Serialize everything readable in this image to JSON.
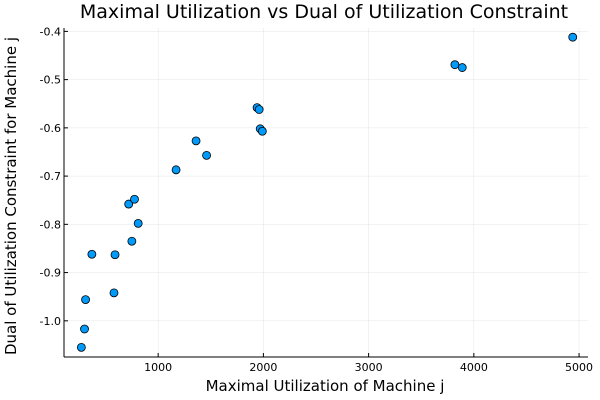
{
  "chart_data": {
    "type": "scatter",
    "title": "Maximal Utilization vs Dual of Utilization Constraint",
    "xlabel": "Maximal Utilization of Machine j",
    "ylabel": "Dual of Utilization Constraint for Machine j",
    "xlim": [
      105,
      5085
    ],
    "ylim": [
      -1.075,
      -0.393
    ],
    "xticks": [
      {
        "value": 1000,
        "label": "1000"
      },
      {
        "value": 2000,
        "label": "2000"
      },
      {
        "value": 3000,
        "label": "3000"
      },
      {
        "value": 4000,
        "label": "4000"
      },
      {
        "value": 5000,
        "label": "5000"
      }
    ],
    "yticks": [
      {
        "value": -1.0,
        "label": "-1.0"
      },
      {
        "value": -0.9,
        "label": "-0.9"
      },
      {
        "value": -0.8,
        "label": "-0.8"
      },
      {
        "value": -0.7,
        "label": "-0.7"
      },
      {
        "value": -0.6,
        "label": "-0.6"
      },
      {
        "value": -0.5,
        "label": "-0.5"
      },
      {
        "value": -0.4,
        "label": "-0.4"
      }
    ],
    "grid": true,
    "legend": "none",
    "color": "#009AFA",
    "series": [
      {
        "x": [
          270,
          300,
          310,
          370,
          580,
          590,
          720,
          750,
          775,
          810,
          1170,
          1360,
          1460,
          1940,
          1960,
          1970,
          1990,
          3820,
          3890,
          4940
        ],
        "y": [
          -1.055,
          -1.017,
          -0.956,
          -0.862,
          -0.942,
          -0.863,
          -0.758,
          -0.835,
          -0.748,
          -0.798,
          -0.687,
          -0.627,
          -0.657,
          -0.558,
          -0.562,
          -0.602,
          -0.607,
          -0.469,
          -0.475,
          -0.412
        ]
      }
    ]
  }
}
